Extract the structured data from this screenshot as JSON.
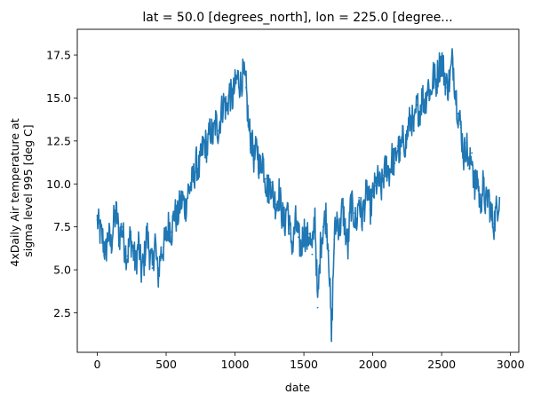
{
  "chart_data": {
    "type": "line",
    "title": "lat = 50.0 [degrees_north], lon = 225.0 [degree...",
    "xlabel": "date",
    "ylabel_lines": [
      "4xDaily Air temperature at",
      "sigma level 995 [deg C]"
    ],
    "xlim": [
      -145,
      3060
    ],
    "ylim": [
      0.2,
      19.0
    ],
    "x_ticks": [
      0,
      500,
      1000,
      1500,
      2000,
      2500,
      3000
    ],
    "x_tick_labels": [
      "0",
      "500",
      "1000",
      "1500",
      "2000",
      "2500",
      "3000"
    ],
    "y_ticks": [
      2.5,
      5.0,
      7.5,
      10.0,
      12.5,
      15.0,
      17.5
    ],
    "y_tick_labels": [
      "2.5",
      "5.0",
      "7.5",
      "10.0",
      "12.5",
      "15.0",
      "17.5"
    ],
    "grid": false,
    "legend": "none",
    "series": [
      {
        "color": "#1f77b4",
        "x": [
          0,
          20,
          40,
          60,
          80,
          100,
          120,
          140,
          160,
          180,
          200,
          220,
          240,
          260,
          280,
          300,
          320,
          340,
          360,
          380,
          400,
          420,
          440,
          460,
          480,
          500,
          520,
          540,
          560,
          580,
          600,
          620,
          640,
          660,
          680,
          700,
          720,
          740,
          760,
          780,
          800,
          820,
          840,
          860,
          880,
          900,
          920,
          940,
          960,
          980,
          1000,
          1020,
          1040,
          1060,
          1080,
          1100,
          1120,
          1140,
          1160,
          1180,
          1200,
          1220,
          1240,
          1260,
          1280,
          1300,
          1320,
          1340,
          1360,
          1380,
          1400,
          1420,
          1440,
          1460,
          1480,
          1500,
          1520,
          1540,
          1560,
          1580,
          1600,
          1620,
          1640,
          1660,
          1680,
          1700,
          1720,
          1740,
          1760,
          1780,
          1800,
          1820,
          1840,
          1860,
          1880,
          1900,
          1920,
          1940,
          1960,
          1980,
          2000,
          2020,
          2040,
          2060,
          2080,
          2100,
          2120,
          2140,
          2160,
          2180,
          2200,
          2220,
          2240,
          2260,
          2280,
          2300,
          2320,
          2340,
          2360,
          2380,
          2400,
          2420,
          2440,
          2460,
          2480,
          2500,
          2520,
          2540,
          2560,
          2580,
          2600,
          2620,
          2640,
          2660,
          2680,
          2700,
          2720,
          2740,
          2760,
          2780,
          2800,
          2820,
          2840,
          2860,
          2880,
          2900,
          2920
        ],
        "y": [
          7.9,
          7.2,
          6.8,
          5.9,
          7.1,
          6.4,
          7.8,
          8.3,
          6.9,
          7.5,
          6.2,
          5.8,
          7.0,
          6.1,
          5.3,
          6.6,
          4.9,
          5.5,
          7.2,
          6.0,
          5.1,
          6.8,
          4.5,
          5.9,
          6.3,
          6.9,
          7.7,
          7.2,
          8.4,
          7.9,
          8.8,
          9.1,
          8.6,
          9.6,
          9.9,
          10.4,
          11.2,
          10.8,
          11.9,
          12.4,
          12.1,
          13.2,
          12.7,
          13.6,
          13.1,
          14.2,
          14.8,
          14.3,
          15.3,
          14.9,
          15.7,
          16.2,
          15.8,
          16.4,
          15.6,
          13.2,
          12.5,
          11.4,
          12.2,
          10.8,
          11.6,
          10.3,
          9.6,
          10.1,
          9.2,
          8.8,
          9.5,
          8.3,
          7.6,
          8.9,
          7.1,
          6.4,
          7.8,
          6.9,
          6.2,
          7.4,
          6.7,
          7.1,
          5.9,
          8.4,
          2.8,
          6.3,
          7.5,
          8.2,
          6.1,
          1.0,
          6.8,
          8.1,
          7.3,
          8.7,
          7.4,
          6.2,
          8.9,
          8.3,
          7.6,
          9.2,
          7.9,
          8.8,
          9.7,
          8.5,
          9.3,
          9.9,
          10.2,
          9.6,
          10.5,
          11.1,
          10.7,
          11.5,
          11.2,
          12.2,
          11.8,
          12.6,
          12.3,
          13.4,
          13.9,
          13.1,
          14.6,
          14.2,
          15.1,
          14.7,
          15.8,
          15.2,
          16.3,
          15.9,
          16.8,
          17.2,
          16.4,
          15.6,
          16.1,
          17.3,
          15.4,
          14.1,
          13.3,
          11.6,
          12.4,
          10.9,
          11.8,
          9.6,
          10.4,
          8.7,
          9.9,
          8.8,
          9.4,
          8.1,
          7.7,
          8.6,
          9.2
        ]
      }
    ]
  }
}
